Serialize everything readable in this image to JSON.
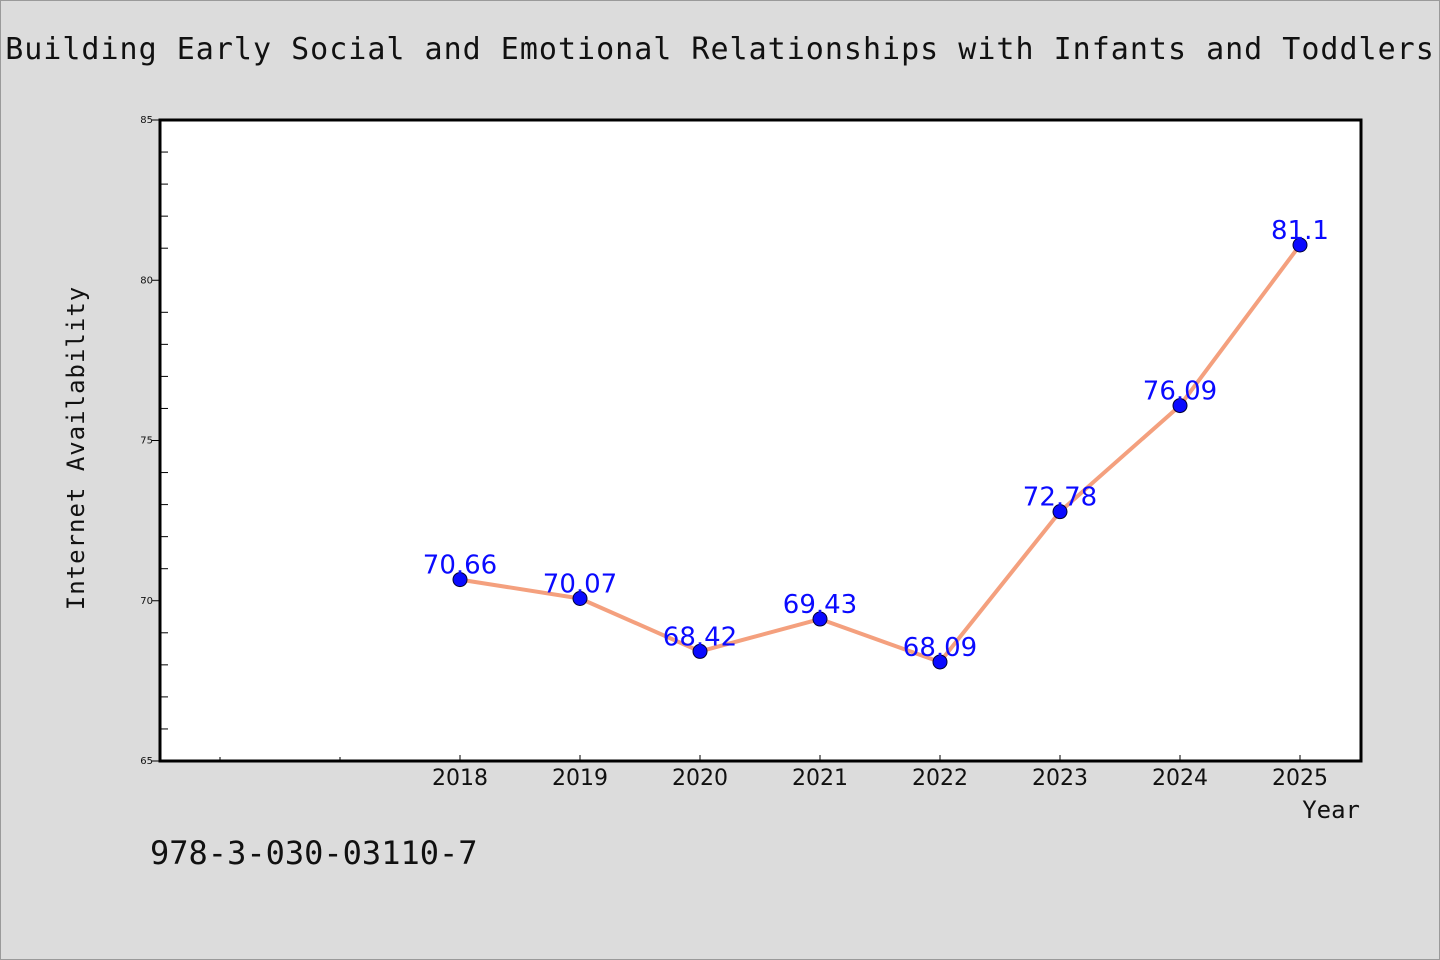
{
  "chart_data": {
    "type": "line",
    "title": "Building Early Social and Emotional Relationships with Infants and Toddlers",
    "xlabel": "Year",
    "ylabel": "Internet Availability",
    "categories": [
      "2018",
      "2019",
      "2020",
      "2021",
      "2022",
      "2023",
      "2024",
      "2025"
    ],
    "series": [
      {
        "values": [
          70.66,
          70.07,
          68.42,
          69.43,
          68.09,
          72.78,
          76.09,
          81.1
        ]
      }
    ],
    "data_labels": [
      "70.66",
      "70.07",
      "68.42",
      "69.43",
      "68.09",
      "72.78",
      "76.09",
      "81.1"
    ],
    "ylim": [
      65,
      85
    ],
    "yticks": [
      "65",
      "70",
      "75",
      "80",
      "85"
    ],
    "grid": false,
    "colors": {
      "line": "#f4a07e",
      "marker": "#0a0aff",
      "label": "#0a0aff",
      "axes": "#000000"
    }
  },
  "footer": {
    "code": "978-3-030-03110-7"
  }
}
